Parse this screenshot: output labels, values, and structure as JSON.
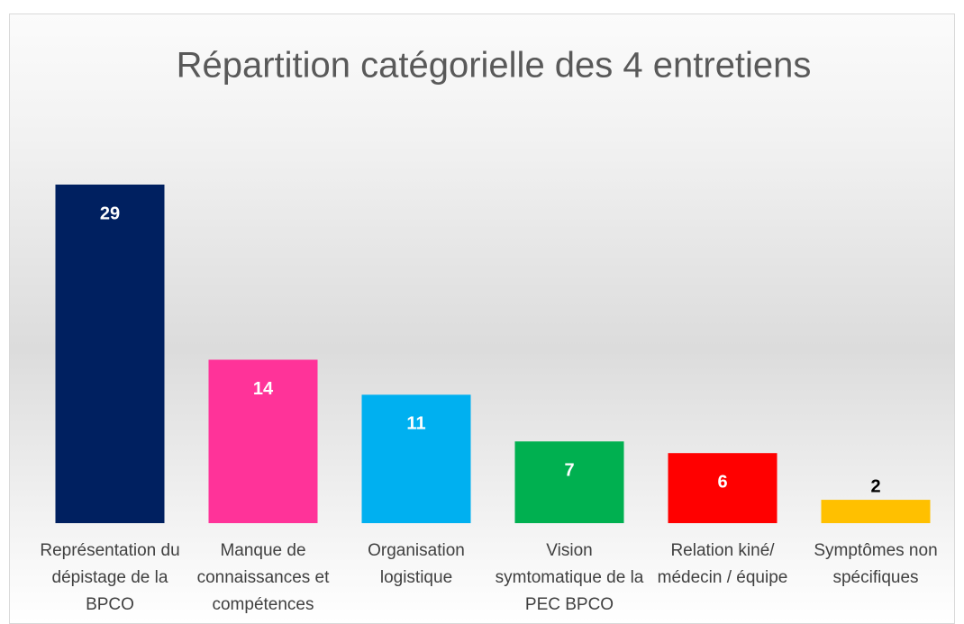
{
  "chart_data": {
    "type": "bar",
    "title": "Répartition catégorielle des 4 entretiens",
    "categories": [
      "Représentation du dépistage de la BPCO",
      "Manque de connaissances et compétences",
      "Organisation logistique",
      "Vision symtomatique de la PEC BPCO",
      "Relation kiné/ médecin / équipe",
      "Symptômes non spécifiques"
    ],
    "values": [
      29,
      14,
      11,
      7,
      6,
      2
    ],
    "colors": [
      "#002060",
      "#ff3399",
      "#00b0f0",
      "#00b050",
      "#ff0000",
      "#ffc000"
    ]
  }
}
